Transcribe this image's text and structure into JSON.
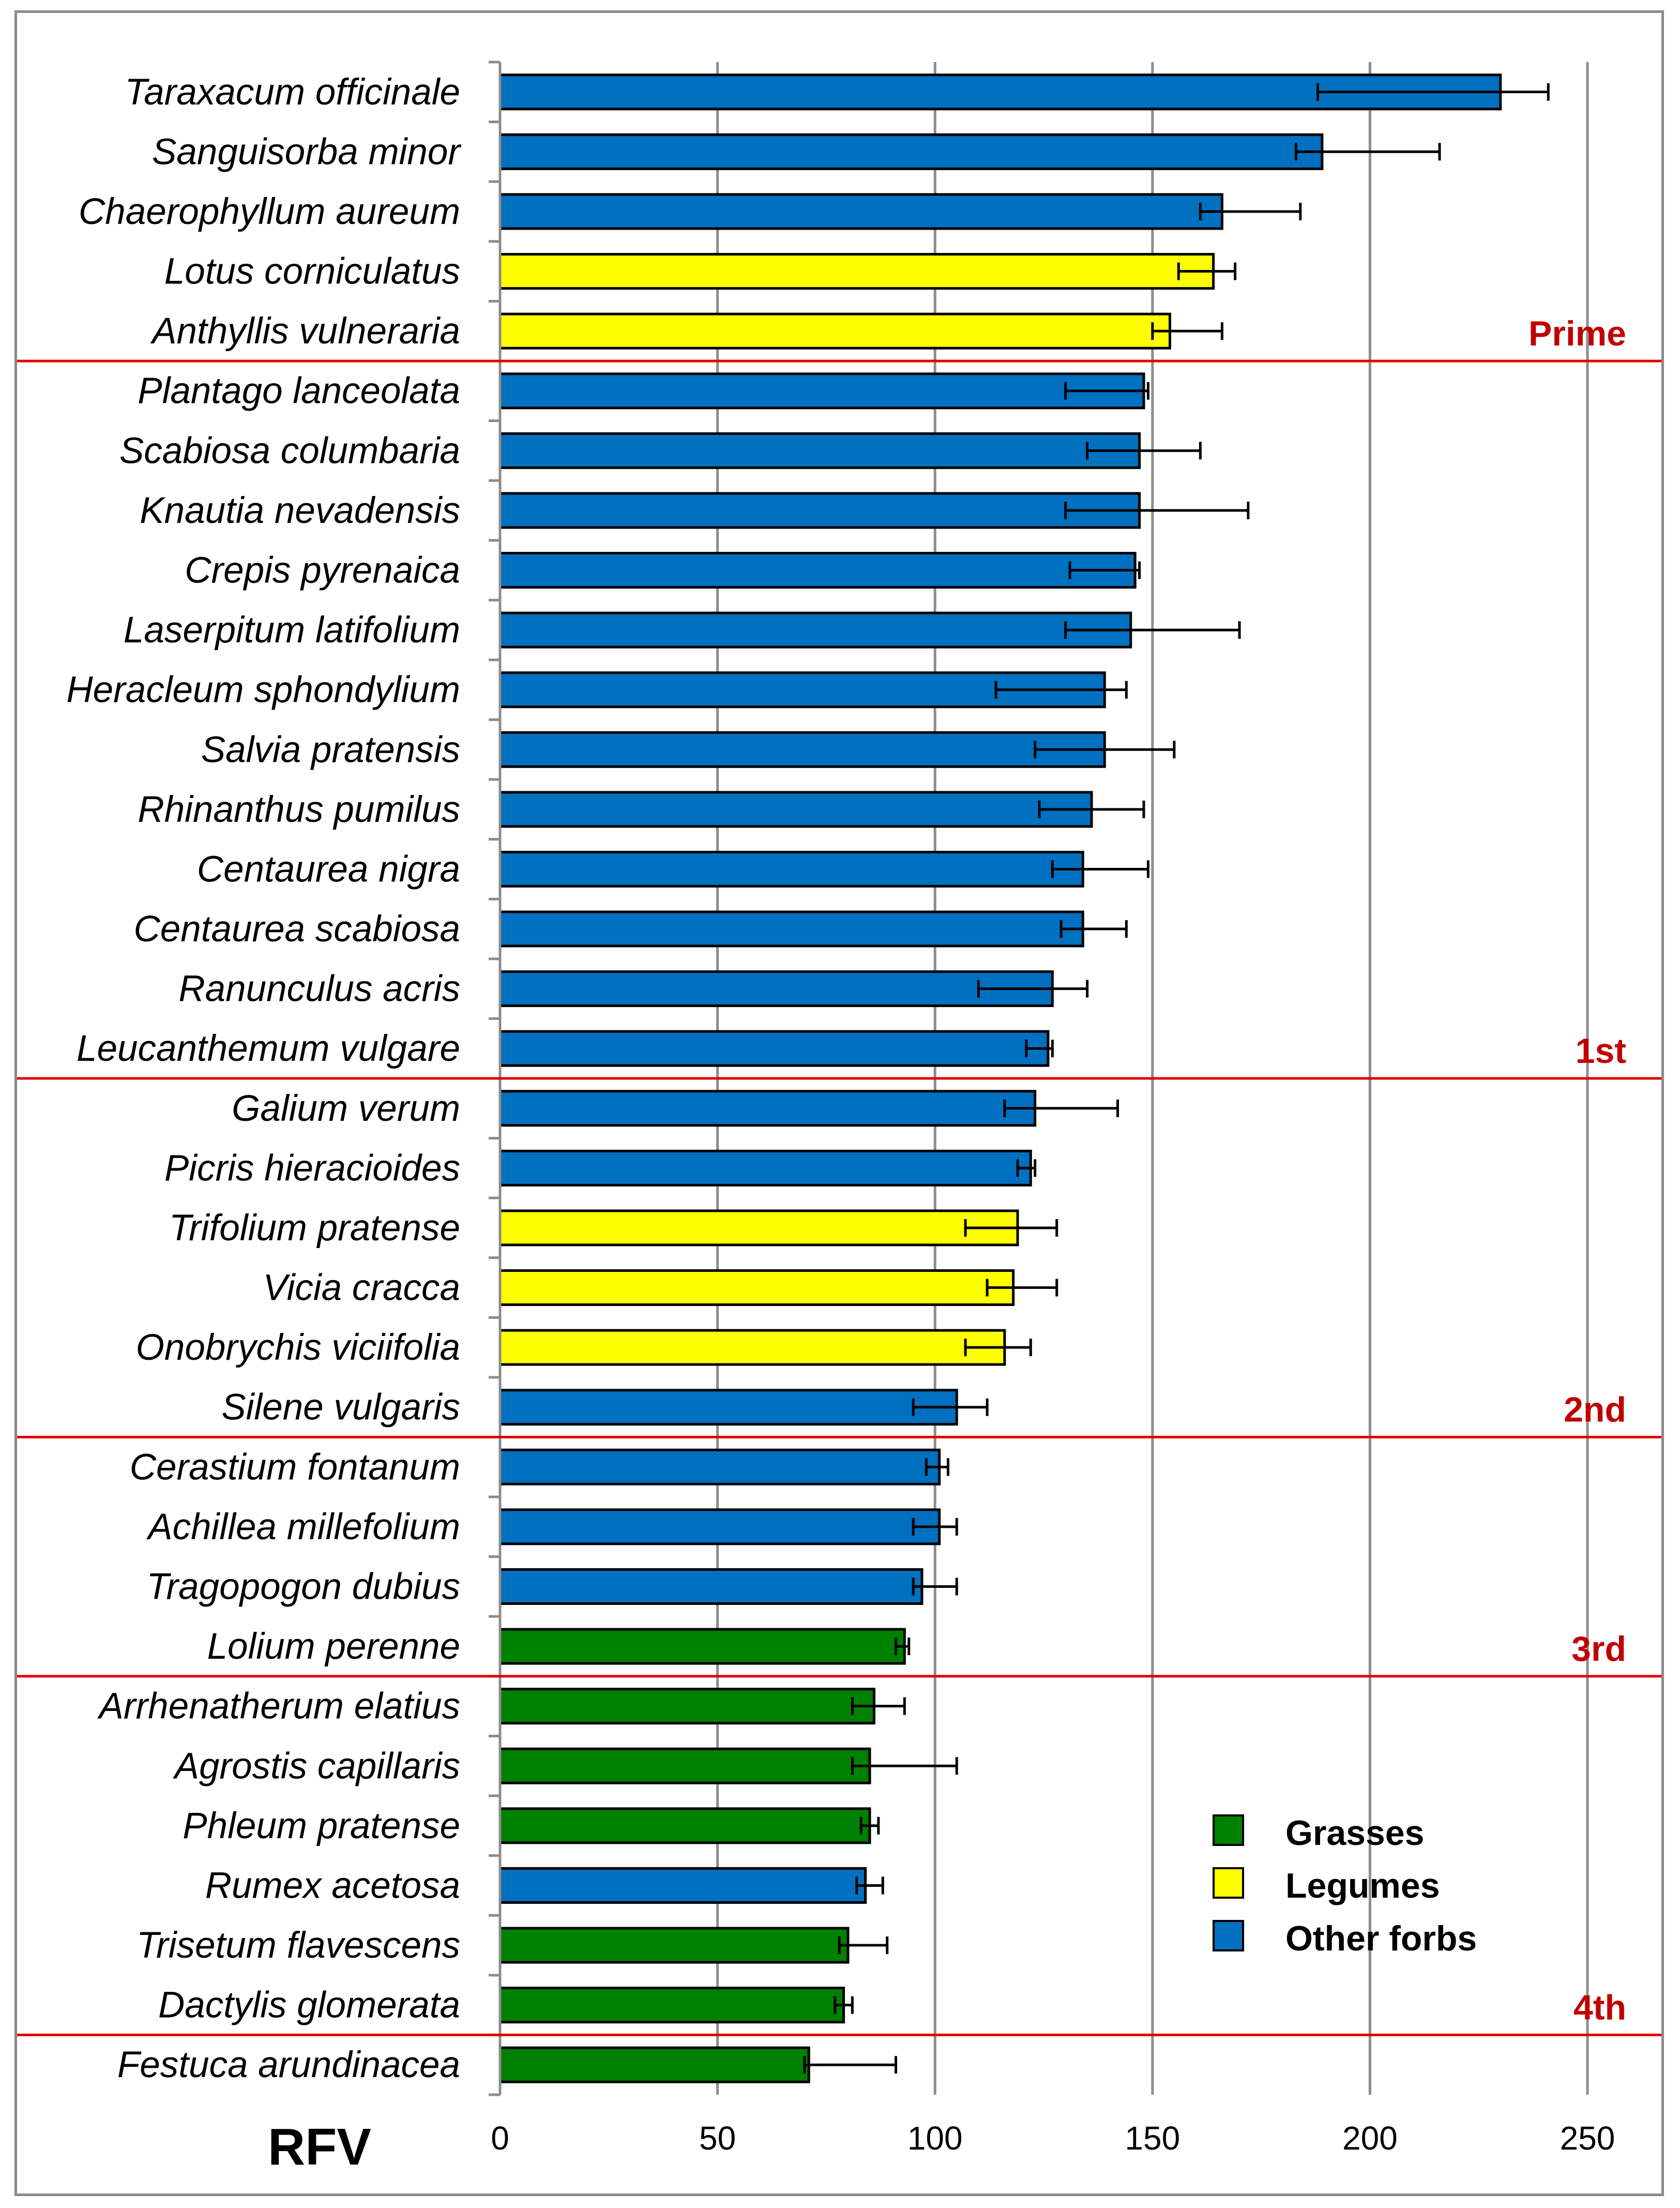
{
  "chart_data": {
    "type": "bar",
    "orientation": "horizontal",
    "xlabel": "RFV",
    "xlim": [
      0,
      250
    ],
    "xticks": [
      0,
      50,
      100,
      150,
      200,
      250
    ],
    "grid": true,
    "legend_position": "bottom-right",
    "legend": [
      {
        "key": "grasses",
        "label": "Grasses",
        "color": "#008000"
      },
      {
        "key": "legumes",
        "label": "Legumes",
        "color": "#FFFF00"
      },
      {
        "key": "forbs",
        "label": "Other forbs",
        "color": "#0070C0"
      }
    ],
    "colors": {
      "grasses": "#008000",
      "legumes": "#FFFF00",
      "forbs": "#0070C0",
      "divider": "#E00000",
      "tier_text": "#C00000",
      "grid": "#8C8C8C"
    },
    "categories": [
      "Taraxacum officinale",
      "Sanguisorba minor",
      "Chaerophyllum aureum",
      "Lotus corniculatus",
      "Anthyllis vulneraria",
      "Plantago lanceolata",
      "Scabiosa columbaria",
      "Knautia nevadensis",
      "Crepis pyrenaica",
      "Laserpitum latifolium",
      "Heracleum sphondylium",
      "Salvia pratensis",
      "Rhinanthus pumilus",
      "Centaurea nigra",
      "Centaurea scabiosa",
      "Ranunculus acris",
      "Leucanthemum vulgare",
      "Galium verum",
      "Picris hieracioides",
      "Trifolium pratense",
      "Vicia cracca",
      "Onobrychis viciifolia",
      "Silene vulgaris",
      "Cerastium fontanum",
      "Achillea millefolium",
      "Tragopogon dubius",
      "Lolium perenne",
      "Arrhenatherum elatius",
      "Agrostis capillaris",
      "Phleum pratense",
      "Rumex acetosa",
      "Trisetum flavescens",
      "Dactylis glomerata",
      "Festuca arundinacea"
    ],
    "groups": [
      "forbs",
      "forbs",
      "forbs",
      "legumes",
      "legumes",
      "forbs",
      "forbs",
      "forbs",
      "forbs",
      "forbs",
      "forbs",
      "forbs",
      "forbs",
      "forbs",
      "forbs",
      "forbs",
      "forbs",
      "forbs",
      "forbs",
      "legumes",
      "legumes",
      "legumes",
      "forbs",
      "forbs",
      "forbs",
      "forbs",
      "grasses",
      "grasses",
      "grasses",
      "grasses",
      "forbs",
      "grasses",
      "grasses",
      "grasses"
    ],
    "values": [
      230,
      189,
      166,
      164,
      154,
      148,
      147,
      147,
      146,
      145,
      139,
      139,
      136,
      134,
      134,
      127,
      126,
      123,
      122,
      119,
      118,
      116,
      105,
      101,
      101,
      97,
      93,
      86,
      85,
      85,
      84,
      80,
      79,
      71
    ],
    "err_low": [
      188,
      183,
      161,
      156,
      150,
      130,
      135,
      130,
      131,
      130,
      114,
      123,
      124,
      127,
      129,
      110,
      121,
      116,
      119,
      107,
      112,
      107,
      95,
      98,
      95,
      95,
      91,
      81,
      81,
      83,
      82,
      78,
      77,
      70
    ],
    "err_high": [
      241,
      216,
      184,
      169,
      166,
      149,
      161,
      172,
      147,
      170,
      144,
      155,
      148,
      149,
      144,
      135,
      127,
      142,
      123,
      128,
      128,
      122,
      112,
      103,
      105,
      105,
      94,
      93,
      105,
      87,
      88,
      89,
      81,
      91
    ],
    "tiers": [
      {
        "label": "Prime",
        "after_index": 4
      },
      {
        "label": "1st",
        "after_index": 16
      },
      {
        "label": "2nd",
        "after_index": 22
      },
      {
        "label": "3rd",
        "after_index": 26
      },
      {
        "label": "4th",
        "after_index": 32
      }
    ]
  }
}
